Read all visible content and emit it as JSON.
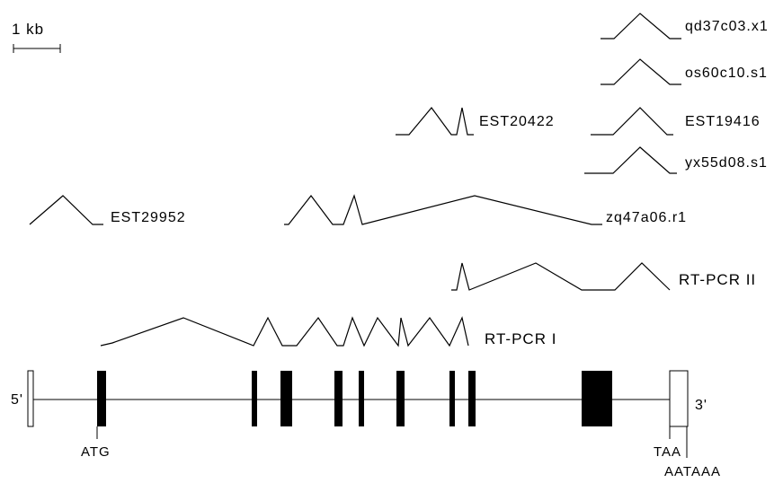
{
  "scale_bar": {
    "label": "1 kb"
  },
  "labels": {
    "qd37c03": "qd37c03.x1",
    "os60c10": "os60c10.s1",
    "est20422": "EST20422",
    "est19416": "EST19416",
    "yx55d08": "yx55d08.s1",
    "est29952": "EST29952",
    "zq47a06": "zq47a06.r1",
    "rtpcr2": "RT-PCR II",
    "rtpcr1": "RT-PCR I"
  },
  "gene": {
    "five_prime": "5'",
    "three_prime": "3'",
    "start_codon": "ATG",
    "stop_codon": "TAA",
    "polya_signal": "AATAAA"
  }
}
